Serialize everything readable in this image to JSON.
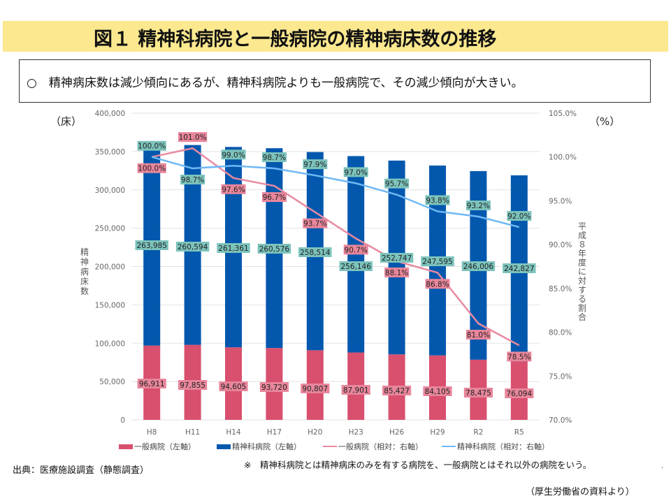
{
  "header": {
    "title": "図１ 精神科病院と一般病院の精神病床数の推移"
  },
  "summary": {
    "text": "○　精神病床数は減少傾向にあるが、精神科病院よりも一般病院で、その減少傾向が大きい。"
  },
  "footer": {
    "source": "出典：医療施設調査（静態調査）",
    "note": "※　精神科病院とは精神病床のみを有する病院を、一般病院とはそれ以外の病院をいう。",
    "credit": "（厚生労働省の資料より）",
    "dot": "."
  },
  "chart_data": {
    "type": "bar",
    "stacked": true,
    "title": "図１ 精神科病院と一般病院の精神病床数の推移",
    "categories": [
      "H8",
      "H11",
      "H14",
      "H17",
      "H20",
      "H23",
      "H26",
      "H29",
      "R2",
      "R5"
    ],
    "series": [
      {
        "name": "一般病院（左軸）",
        "type": "bar",
        "axis": "left",
        "color": "#d94f6e",
        "label_bg": "#e8869b",
        "values": [
          96911,
          97855,
          94605,
          93720,
          90807,
          87901,
          85427,
          84105,
          78475,
          76094
        ],
        "labels": [
          "96,911",
          "97,855",
          "94,605",
          "93,720",
          "90,807",
          "87,901",
          "85,427",
          "84,105",
          "78,475",
          "76,094"
        ]
      },
      {
        "name": "精神科病院（左軸）",
        "type": "bar",
        "axis": "left",
        "color": "#0358ae",
        "label_bg": "#7cc3bc",
        "values": [
          263985,
          260594,
          261361,
          260576,
          258514,
          256146,
          252747,
          247595,
          246006,
          242827
        ],
        "labels": [
          "263,985",
          "260,594",
          "261,361",
          "260,576",
          "258,514",
          "256,146",
          "252,747",
          "247,595",
          "246,006",
          "242,827"
        ]
      },
      {
        "name": "一般病院（相対：右軸）",
        "type": "line",
        "axis": "right",
        "color": "#e88aa0",
        "label_bg": "#e8869b",
        "values": [
          100.0,
          101.0,
          97.6,
          96.7,
          93.7,
          90.7,
          88.1,
          86.8,
          81.0,
          78.5
        ],
        "labels": [
          "100.0%",
          "101.0%",
          "97.6%",
          "96.7%",
          "93.7%",
          "90.7%",
          "88.1%",
          "86.8%",
          "81.0%",
          "78.5%"
        ]
      },
      {
        "name": "精神科病院（相対：右軸）",
        "type": "line",
        "axis": "right",
        "color": "#6fb8f5",
        "label_bg": "#7cc3bc",
        "values": [
          100.0,
          98.7,
          99.0,
          98.7,
          97.9,
          97.0,
          95.7,
          93.8,
          93.2,
          92.0
        ],
        "labels": [
          "100.0%",
          "98.7%",
          "99.0%",
          "98.7%",
          "97.9%",
          "97.0%",
          "95.7%",
          "93.8%",
          "93.2%",
          "92.0%"
        ]
      }
    ],
    "left_axis": {
      "label": "精神病床数",
      "unit": "（床）",
      "range": [
        0,
        400000
      ],
      "ticks": [
        "0",
        "50,000",
        "100,000",
        "150,000",
        "200,000",
        "250,000",
        "300,000",
        "350,000",
        "400,000"
      ]
    },
    "right_axis": {
      "label": "平成８年度に対する割合",
      "unit": "（%）",
      "range": [
        70.0,
        105.0
      ],
      "ticks": [
        "70.0%",
        "75.0%",
        "80.0%",
        "85.0%",
        "90.0%",
        "95.0%",
        "100.0%",
        "105.0%"
      ]
    },
    "grid": true,
    "legend_position": "bottom"
  }
}
